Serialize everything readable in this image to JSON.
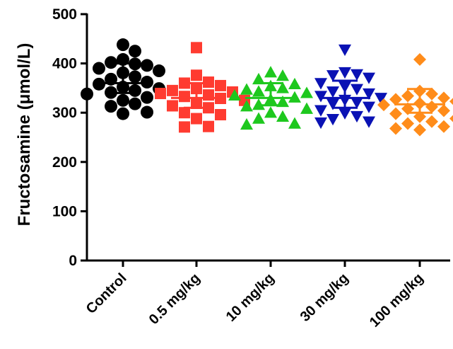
{
  "chart_data": {
    "type": "scatter",
    "title": "",
    "xlabel": "",
    "ylabel": "Fructosamine (μmol/L)",
    "ylim": [
      0,
      500
    ],
    "yticks": [
      "0",
      "100",
      "200",
      "300",
      "400",
      "500"
    ],
    "grid": false,
    "legend": "none",
    "categories": [
      "Control",
      "0.5 mg/kg",
      "10 mg/kg",
      "30 mg/kg",
      "100 mg/kg"
    ],
    "series": [
      {
        "category": "Control",
        "marker": "circle",
        "color": "#000000",
        "mean": 360,
        "error_low": 340,
        "error_high": 400,
        "values": [
          438,
          425,
          408,
          402,
          399,
          396,
          390,
          385,
          381,
          373,
          368,
          362,
          358,
          352,
          349,
          345,
          341,
          338,
          331,
          325,
          318,
          313,
          301,
          298
        ]
      },
      {
        "category": "0.5 mg/kg",
        "marker": "square",
        "color": "#ff3b30",
        "mean": 330,
        "error_low": 310,
        "error_high": 360,
        "values": [
          432,
          376,
          362,
          360,
          355,
          349,
          345,
          342,
          339,
          336,
          333,
          329,
          325,
          319,
          314,
          310,
          300,
          296,
          288,
          272,
          271
        ]
      },
      {
        "category": "10 mg/kg",
        "marker": "triangle-up",
        "color": "#1ec81e",
        "mean": 330,
        "error_low": 315,
        "error_high": 360,
        "values": [
          382,
          375,
          368,
          358,
          354,
          350,
          347,
          343,
          340,
          335,
          331,
          327,
          322,
          316,
          313,
          308,
          300,
          292,
          288,
          278,
          276
        ]
      },
      {
        "category": "30 mg/kg",
        "marker": "triangle-down",
        "color": "#0a12b4",
        "mean": 330,
        "error_low": 310,
        "error_high": 365,
        "values": [
          428,
          382,
          378,
          376,
          371,
          360,
          353,
          348,
          343,
          339,
          334,
          330,
          326,
          321,
          318,
          312,
          305,
          299,
          293,
          287,
          282,
          280
        ]
      },
      {
        "category": "100 mg/kg",
        "marker": "diamond",
        "color": "#ff8c1a",
        "mean": 317,
        "error_low": 300,
        "error_high": 348,
        "values": [
          408,
          344,
          338,
          334,
          330,
          327,
          323,
          319,
          316,
          312,
          308,
          304,
          298,
          292,
          288,
          282,
          278,
          272,
          268,
          265
        ]
      }
    ]
  }
}
